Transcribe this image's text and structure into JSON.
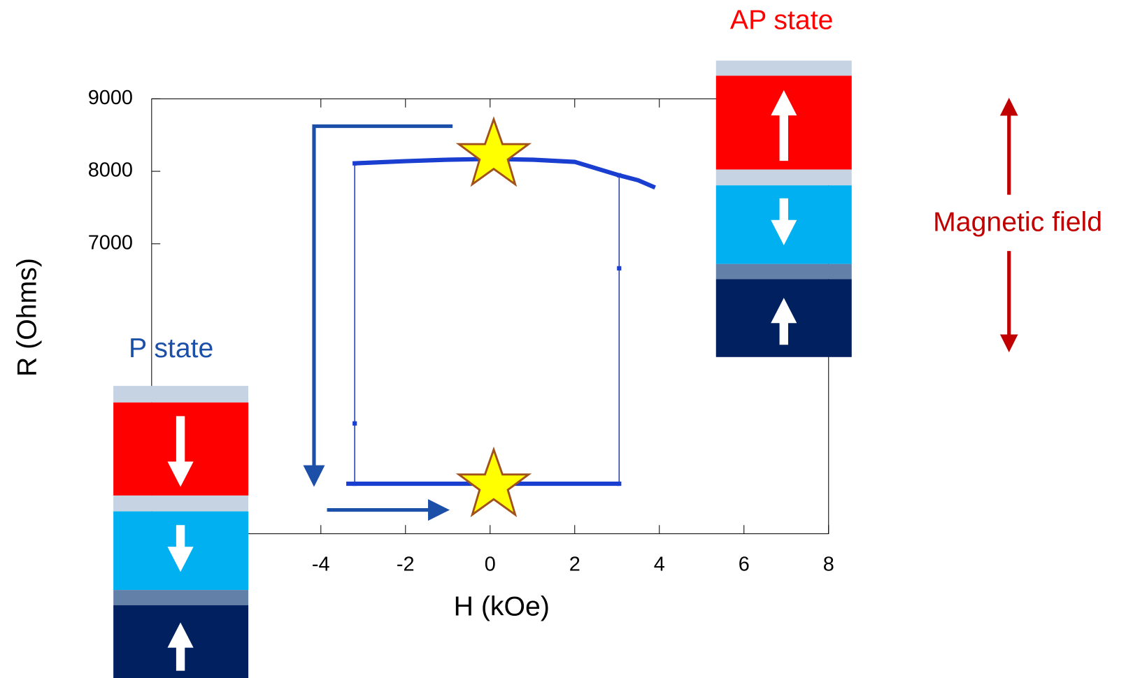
{
  "chart_data": {
    "type": "line",
    "x_label": "H (kOe)",
    "y_label": "R (Ohms)",
    "annotations": [
      "AP state",
      "P state",
      "Magnetic field"
    ],
    "xlim": [
      -8,
      8
    ],
    "xticks": [
      -4,
      -2,
      0,
      2,
      4,
      6,
      8
    ],
    "ylim": [
      3000,
      9000
    ],
    "yticks": [
      9000,
      8000,
      7000
    ],
    "series": [
      {
        "color": "#1a3fd0",
        "width": 6,
        "x": [
          -3.2,
          -2,
          -1,
          0,
          1,
          2,
          3.05,
          3.5,
          3.9
        ],
        "values": [
          8110,
          8140,
          8160,
          8170,
          8160,
          8130,
          7945,
          7876,
          7776
        ]
      },
      {
        "color": "#1a3fd0",
        "width": 6,
        "x": [
          -3.4,
          -2,
          0,
          2,
          3.05
        ],
        "values": [
          3690,
          3690,
          3690,
          3690,
          3690
        ]
      },
      {
        "color": "#1a3fd0",
        "width": 1.5,
        "x": [
          -3.2,
          -3.2,
          -3.2,
          null,
          3.05,
          3.05,
          3.05
        ],
        "values": [
          3690,
          4522,
          8110,
          null,
          7945,
          6662,
          3690
        ]
      }
    ]
  }
}
